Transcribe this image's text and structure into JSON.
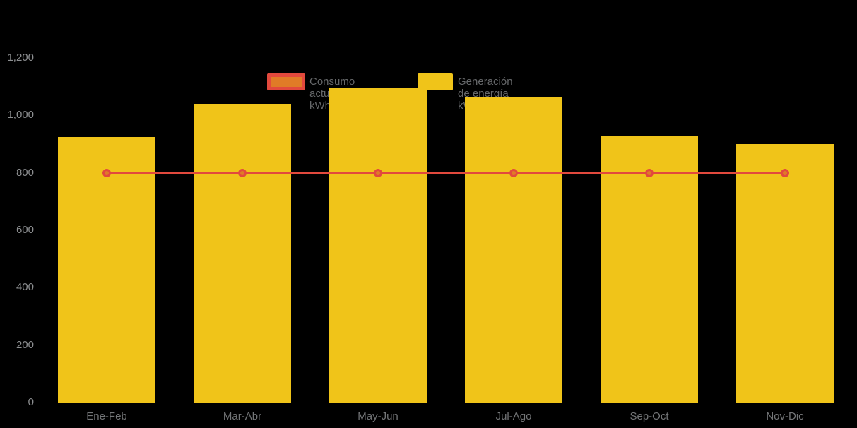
{
  "legend": [
    {
      "label": "Consumo actual kWh",
      "swatch_fill": "#E07B27",
      "swatch_border": "#E2493D",
      "series_type": "line"
    },
    {
      "label": "Generación de energía kWh",
      "swatch_fill": "#F0C419",
      "swatch_border": "#F0C419",
      "series_type": "bar"
    }
  ],
  "chart_data": {
    "type": "bar",
    "title": "",
    "xlabel": "",
    "ylabel": "",
    "categories": [
      "Ene-Feb",
      "Mar-Abr",
      "May-Jun",
      "Jul-Ago",
      "Sep-Oct",
      "Nov-Dic"
    ],
    "series": [
      {
        "name": "Generación de energía kWh",
        "type": "bar",
        "color": "#F0C419",
        "values": [
          925,
          1040,
          1095,
          1065,
          930,
          900
        ]
      },
      {
        "name": "Consumo actual kWh",
        "type": "line",
        "color": "#E2493D",
        "marker_fill": "#E07B27",
        "values": [
          800,
          800,
          800,
          800,
          800,
          800
        ]
      }
    ],
    "ylim": [
      0,
      1200
    ],
    "ytick_interval": 200,
    "ytick_labels": [
      "0",
      "200",
      "400",
      "600",
      "800",
      "1,000",
      "1,200"
    ],
    "grid": false,
    "legend_position": "top",
    "background": "#000000"
  }
}
